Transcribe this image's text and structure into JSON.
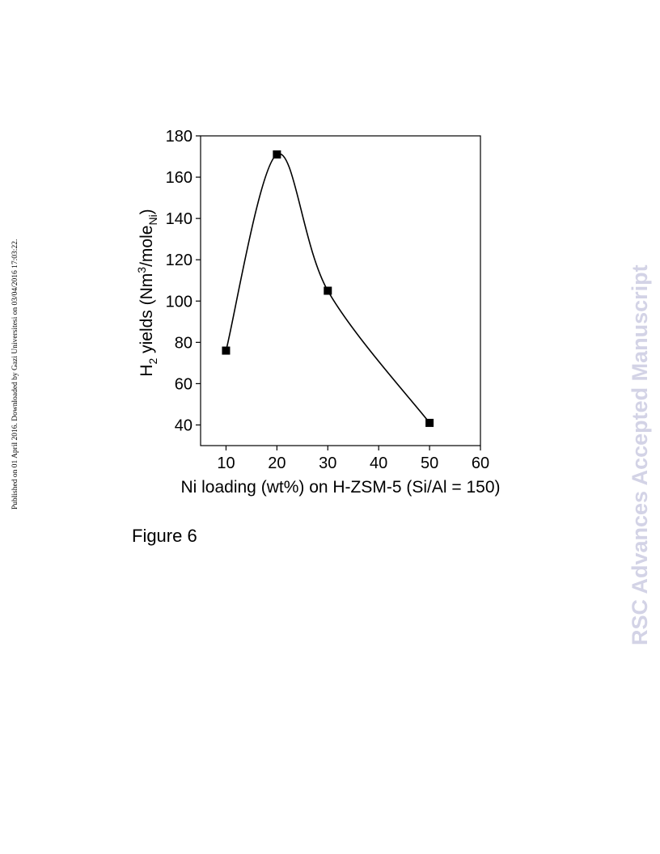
{
  "side_note": "Published on 01 April 2016. Downloaded by Gazi Universitesi on 03/04/2016 17:03:22.",
  "watermark": "RSC Advances Accepted Manuscript",
  "figure_caption": "Figure 6",
  "chart_data": {
    "type": "line",
    "xlabel": "Ni loading (wt%) on H-ZSM-5 (Si/Al = 150)",
    "ylabel_parts": {
      "h": "H",
      "h_sub": "2",
      "mid": " yields (Nm",
      "sup": "3",
      "mid2": "/mole",
      "sub": "Ni",
      "end": ")"
    },
    "x_ticks": [
      10,
      20,
      30,
      40,
      50,
      60
    ],
    "y_ticks": [
      40,
      60,
      80,
      100,
      120,
      140,
      160,
      180
    ],
    "xlim": [
      5,
      60
    ],
    "ylim": [
      30,
      180
    ],
    "grid": false,
    "marker": "square",
    "series": [
      {
        "x": [
          10,
          20,
          30,
          50
        ],
        "y": [
          76,
          171,
          105,
          41
        ]
      }
    ],
    "fitted_curve": true
  }
}
